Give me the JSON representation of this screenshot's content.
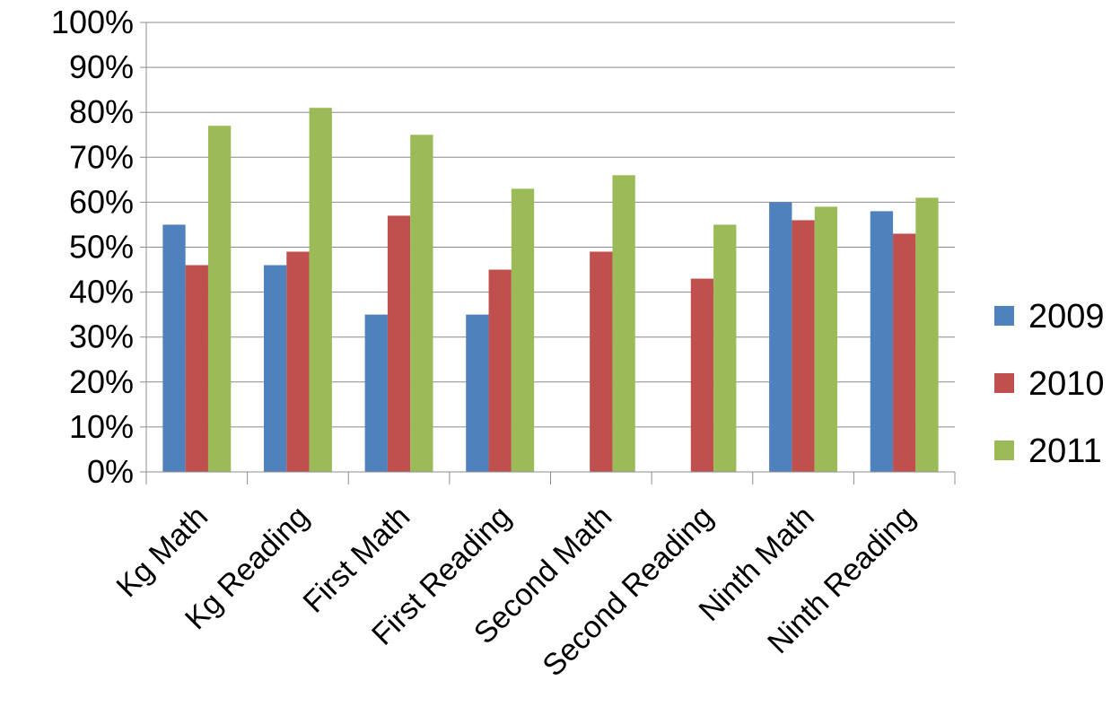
{
  "chart_data": {
    "type": "bar",
    "title": "",
    "xlabel": "",
    "ylabel": "",
    "ylim": [
      0,
      100
    ],
    "y_ticks": [
      "0%",
      "10%",
      "20%",
      "30%",
      "40%",
      "50%",
      "60%",
      "70%",
      "80%",
      "90%",
      "100%"
    ],
    "grid": true,
    "legend_position": "right",
    "categories": [
      "Kg Math",
      "Kg Reading",
      "First Math",
      "First Reading",
      "Second Math",
      "Second Reading",
      "Ninth Math",
      "Ninth Reading"
    ],
    "series": [
      {
        "name": "2009",
        "color": "#4F81BD",
        "values": [
          55,
          46,
          35,
          35,
          null,
          null,
          60,
          58
        ]
      },
      {
        "name": "2010",
        "color": "#C0504D",
        "values": [
          46,
          49,
          57,
          45,
          49,
          43,
          56,
          53
        ]
      },
      {
        "name": "2011",
        "color": "#9BBB59",
        "values": [
          77,
          81,
          75,
          63,
          66,
          55,
          59,
          61
        ]
      }
    ]
  }
}
